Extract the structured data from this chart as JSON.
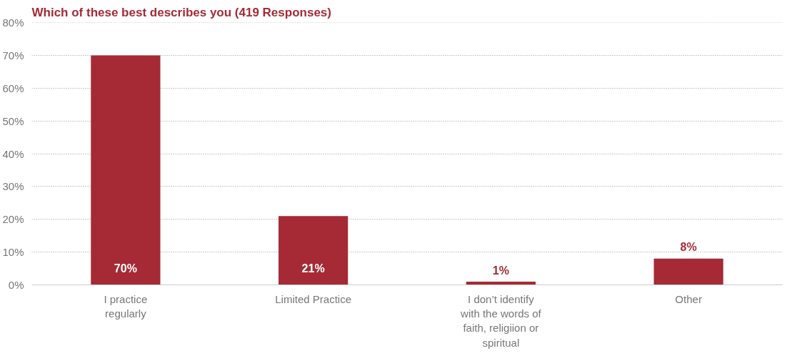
{
  "chart_data": {
    "type": "bar",
    "title": "Which of these best describes you (419 Responses)",
    "categories": [
      "I practice regularly",
      "Limited Practice",
      "I don’t identify with the words of faith, religiion or spiritual",
      "Other"
    ],
    "values": [
      70,
      21,
      1,
      8
    ],
    "value_labels": [
      "70%",
      "21%",
      "1%",
      "8%"
    ],
    "color": "#a52a35",
    "grid": "y",
    "ylim": [
      0,
      80
    ],
    "yticks": [
      {
        "value": 0,
        "label": "0%"
      },
      {
        "value": 10,
        "label": "10%"
      },
      {
        "value": 20,
        "label": "20%"
      },
      {
        "value": 30,
        "label": "30%"
      },
      {
        "value": 40,
        "label": "40%"
      },
      {
        "value": 50,
        "label": "50%"
      },
      {
        "value": 60,
        "label": "60%"
      },
      {
        "value": 70,
        "label": "70%"
      },
      {
        "value": 80,
        "label": "80%"
      }
    ]
  }
}
